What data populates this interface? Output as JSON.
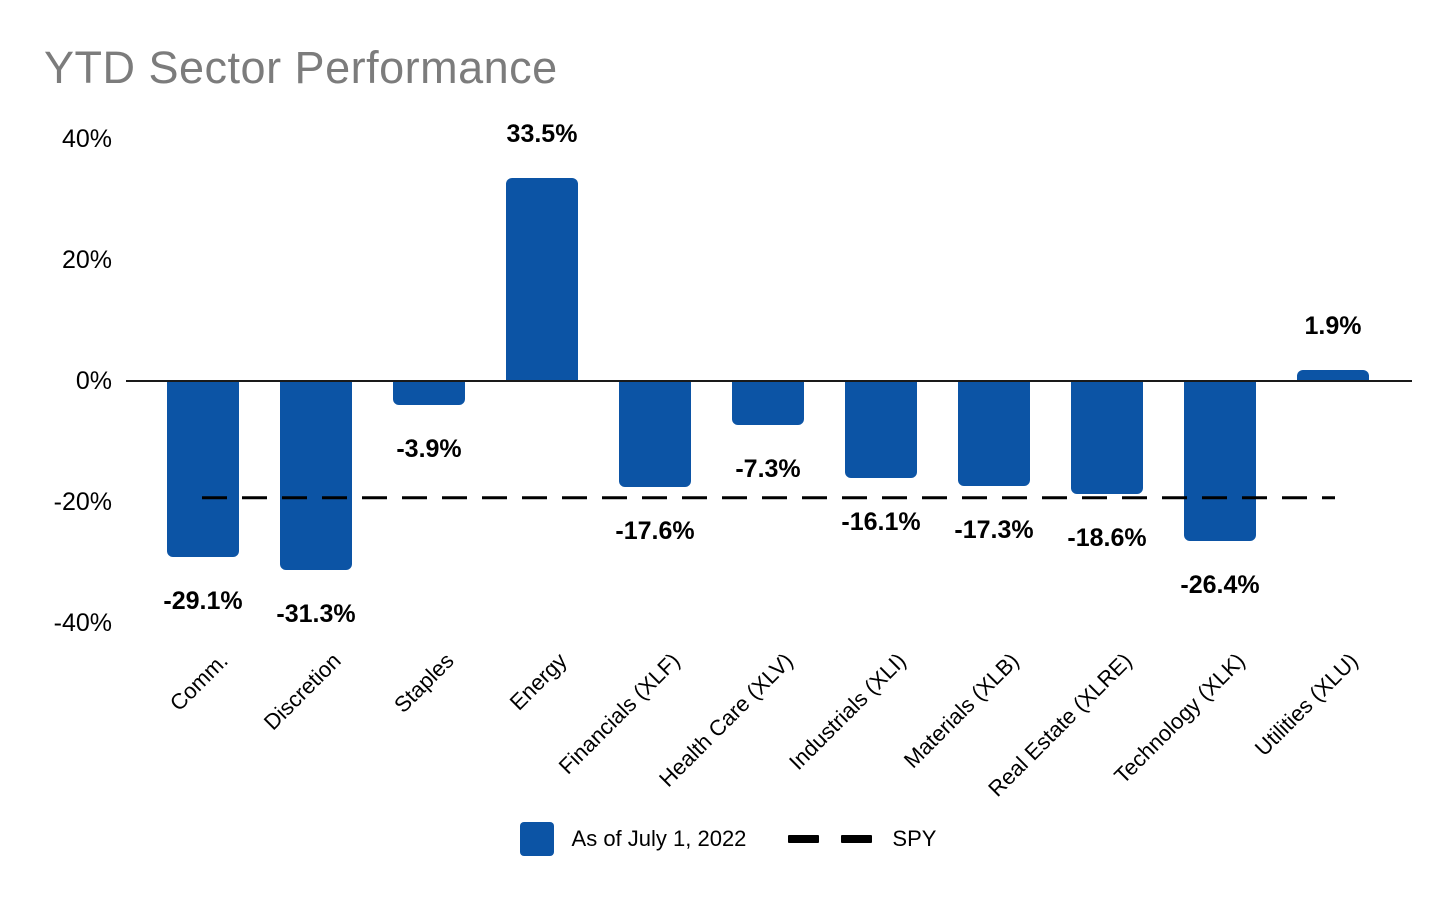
{
  "title": "YTD Sector Performance",
  "colors": {
    "bar": "#0C54A5",
    "title_text": "#7C7C7C",
    "axis": "#1A1A1A",
    "labels": "#000000",
    "spy_line": "#000000",
    "background": "#FFFFFF"
  },
  "chart_data": {
    "type": "bar",
    "title": "YTD Sector Performance",
    "categories": [
      "Comm.",
      "Discretion",
      "Staples",
      "Energy",
      "Financials (XLF)",
      "Health Care (XLV)",
      "Industrials (XLI)",
      "Materials (XLB)",
      "Real Estate (XLRE)",
      "Technology (XLK)",
      "Utilities (XLU)"
    ],
    "values": [
      -29.1,
      -31.3,
      -3.9,
      33.5,
      -17.6,
      -7.3,
      -16.1,
      -17.3,
      -18.6,
      -26.4,
      1.9
    ],
    "value_labels": [
      "-29.1%",
      "-31.3%",
      "-3.9%",
      "33.5%",
      "-17.6%",
      "-7.3%",
      "-16.1%",
      "-17.3%",
      "-18.6%",
      "-26.4%",
      "1.9%"
    ],
    "xlabel": "",
    "ylabel": "",
    "ylim": [
      -45,
      45
    ],
    "y_ticks": [
      {
        "value": 40,
        "label": "40%"
      },
      {
        "value": 20,
        "label": "20%"
      },
      {
        "value": 0,
        "label": "0%"
      },
      {
        "value": -20,
        "label": "-20%"
      },
      {
        "value": -40,
        "label": "-40%"
      }
    ],
    "grid": false,
    "bar_color": "#0C54A5",
    "reference_line": {
      "name": "SPY",
      "value_pct": -19.3,
      "style": "dashed",
      "color": "#000000"
    },
    "legend": {
      "position": "bottom-center",
      "items": [
        {
          "swatch": "square",
          "color": "#0C54A5",
          "label": "As of July 1, 2022"
        },
        {
          "swatch": "dashed-line",
          "color": "#000000",
          "label": "SPY"
        }
      ]
    }
  }
}
